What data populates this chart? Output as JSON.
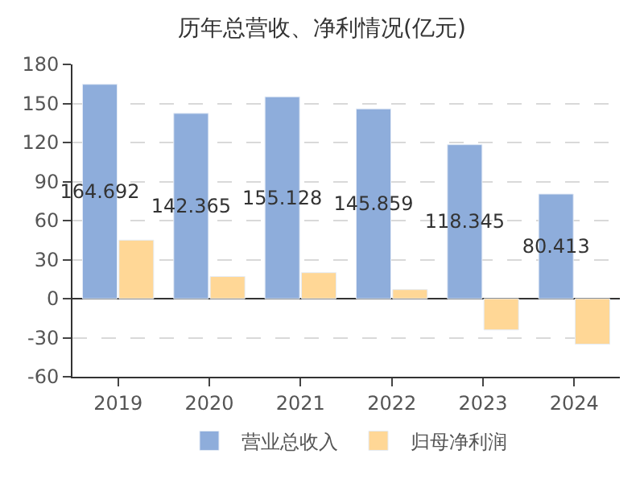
{
  "chart_data": {
    "type": "bar",
    "title": "历年总营收、净利情况(亿元)",
    "categories": [
      "2019",
      "2020",
      "2021",
      "2022",
      "2023",
      "2024"
    ],
    "series": [
      {
        "name": "营业总收入",
        "color": "#8eaddb",
        "values": [
          164.692,
          142.365,
          155.128,
          145.859,
          118.345,
          80.413
        ],
        "value_labels": [
          "164.692",
          "142.365",
          "155.128",
          "145.859",
          "118.345",
          "80.413"
        ]
      },
      {
        "name": "归母净利润",
        "color": "#ffd796",
        "values": [
          45,
          17,
          20,
          7,
          -24,
          -35
        ]
      }
    ],
    "ylim": [
      -60,
      180
    ],
    "yticks": [
      -60,
      -30,
      0,
      30,
      60,
      90,
      120,
      150,
      180
    ],
    "grid": "y",
    "legend": "bottom"
  }
}
